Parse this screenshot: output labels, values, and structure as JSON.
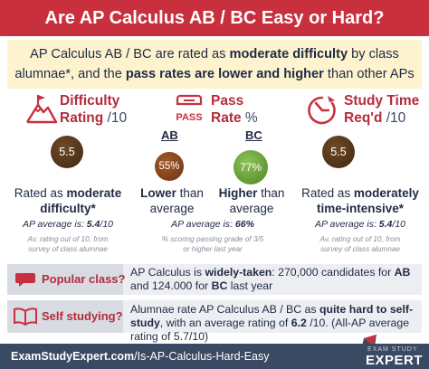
{
  "title": "Are AP Calculus AB / BC Easy or Hard?",
  "intro": {
    "p1": "AP Calculus AB / BC are rated as ",
    "b1": "moderate difficulty",
    "p2": " by class alumnae*, and the ",
    "b2": "pass rates are lower and higher",
    "p3": " than other APs"
  },
  "difficulty": {
    "label1": "Difficulty",
    "label2": "Rating",
    "unit": " /10",
    "value": "5.5",
    "text_pre": "Rated as ",
    "text_bold": "moderate difficulty*",
    "avg_label": "AP average is: ",
    "avg_value": "5.4",
    "avg_unit": "/10",
    "note1": "Av. rating out of 10, from",
    "note2": "survey of class alumnae"
  },
  "pass": {
    "icon_text": "PASS",
    "label1": "Pass",
    "label2": "Rate",
    "unit": " %",
    "ab_label": "AB",
    "bc_label": "BC",
    "ab_value": "55%",
    "bc_value": "77%",
    "ab_text_bold": "Lower",
    "ab_text_rest": " than average",
    "bc_text_bold": "Higher",
    "bc_text_rest": " than average",
    "avg_label": "AP average is: ",
    "avg_value": "66%",
    "note1": "% scoring passing grade of 3/5",
    "note2": "or higher last year"
  },
  "study": {
    "label1": "Study Time",
    "label2": "Req'd",
    "unit": " /10",
    "value": "5.5",
    "text_pre": "Rated as ",
    "text_bold": "moderately time-intensive*",
    "avg_label": "AP average is: ",
    "avg_value": "5.4",
    "avg_unit": "/10",
    "note1": "Av. rating out of 10, from",
    "note2": "survey of class alumnae"
  },
  "popular": {
    "label": "Popular class?",
    "t1": "AP Calculus is ",
    "b1": "widely-taken",
    "t2": ": 270,000  candidates for ",
    "b2": "AB",
    "t3": " and 124.000  for ",
    "b3": "BC",
    "t4": " last year"
  },
  "selfstudy": {
    "label": "Self studying?",
    "t1": "Alumnae rate AP Calculus AB / BC as ",
    "b1": "quite hard to self-study",
    "t2": ", with an average rating of ",
    "b2": "6.2",
    "t3": " /10. (All-AP average rating of 5.7/10)"
  },
  "footer": {
    "url_bold": "ExamStudyExpert.com",
    "url_rest": "/Is-AP-Calculus-Hard-Easy",
    "brand_small": "EXAM STUDY",
    "brand_big": "EXPERT"
  },
  "colors": {
    "accent_red": "#c8303e",
    "navy": "#3a4a63",
    "circle_brown": "#5a3b1f",
    "circle_ab": "#8b4a22",
    "circle_bc": "#6aa03a",
    "intro_bg": "#fdf3cf"
  },
  "icons": [
    "mountain-flag-icon",
    "pass-stamp-icon",
    "stopwatch-icon",
    "open-book-icon"
  ]
}
